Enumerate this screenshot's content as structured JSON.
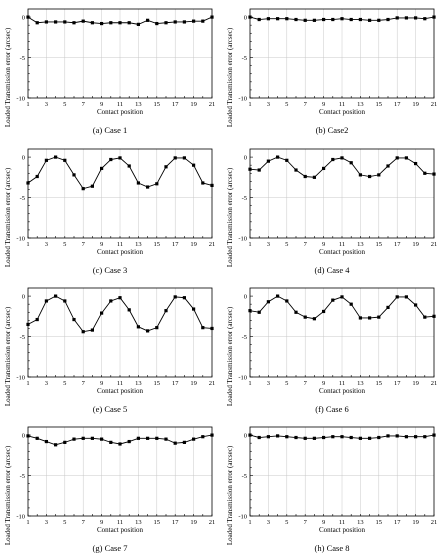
{
  "figure": {
    "panels": [
      {
        "caption": "(a) Case 1"
      },
      {
        "caption": "(b) Case2"
      },
      {
        "caption": "(c) Case 3"
      },
      {
        "caption": "(d) Case 4"
      },
      {
        "caption": "(e) Case 5"
      },
      {
        "caption": "(f) Case 6"
      },
      {
        "caption": "(g) Case 7"
      },
      {
        "caption": "(h) Case 8"
      }
    ]
  },
  "chart_data": [
    {
      "type": "line",
      "title": "",
      "xlabel": "Contact position",
      "ylabel": "Loaded Transmission error (arcsec)",
      "x": [
        1,
        2,
        3,
        4,
        5,
        6,
        7,
        8,
        9,
        10,
        11,
        12,
        13,
        14,
        15,
        16,
        17,
        18,
        19,
        20,
        21
      ],
      "xticks": [
        "1",
        "3",
        "5",
        "7",
        "9",
        "11",
        "13",
        "15",
        "17",
        "19",
        "21"
      ],
      "yticks": [
        "0",
        "-5",
        "-10"
      ],
      "xlim": [
        1,
        21
      ],
      "ylim": [
        -10,
        1
      ],
      "grid": "vertical",
      "series": [
        {
          "values": [
            0,
            -0.7,
            -0.6,
            -0.6,
            -0.6,
            -0.7,
            -0.5,
            -0.7,
            -0.8,
            -0.7,
            -0.7,
            -0.7,
            -0.9,
            -0.4,
            -0.8,
            -0.7,
            -0.6,
            -0.6,
            -0.5,
            -0.5,
            0
          ]
        }
      ]
    },
    {
      "type": "line",
      "title": "",
      "xlabel": "Contact position",
      "ylabel": "Loaded Transmission error (arcsec)",
      "x": [
        1,
        2,
        3,
        4,
        5,
        6,
        7,
        8,
        9,
        10,
        11,
        12,
        13,
        14,
        15,
        16,
        17,
        18,
        19,
        20,
        21
      ],
      "xticks": [
        "1",
        "3",
        "5",
        "7",
        "9",
        "11",
        "13",
        "15",
        "17",
        "19",
        "21"
      ],
      "yticks": [
        "0",
        "-5",
        "-10"
      ],
      "xlim": [
        1,
        21
      ],
      "ylim": [
        -10,
        1
      ],
      "grid": "vertical",
      "series": [
        {
          "values": [
            0,
            -0.3,
            -0.2,
            -0.2,
            -0.2,
            -0.3,
            -0.4,
            -0.4,
            -0.3,
            -0.3,
            -0.2,
            -0.3,
            -0.3,
            -0.4,
            -0.4,
            -0.3,
            -0.1,
            -0.1,
            -0.1,
            -0.2,
            0
          ]
        }
      ]
    },
    {
      "type": "line",
      "title": "",
      "xlabel": "Contact position",
      "ylabel": "Loaded Transmission error (arcsec)",
      "x": [
        1,
        2,
        3,
        4,
        5,
        6,
        7,
        8,
        9,
        10,
        11,
        12,
        13,
        14,
        15,
        16,
        17,
        18,
        19,
        20,
        21
      ],
      "xticks": [
        "1",
        "3",
        "5",
        "7",
        "9",
        "11",
        "13",
        "15",
        "17",
        "19",
        "21"
      ],
      "yticks": [
        "0",
        "-5",
        "-10"
      ],
      "xlim": [
        1,
        21
      ],
      "ylim": [
        -10,
        1
      ],
      "grid": "vertical",
      "series": [
        {
          "values": [
            -3.2,
            -2.4,
            -0.4,
            0,
            -0.4,
            -2.2,
            -3.9,
            -3.6,
            -1.4,
            -0.3,
            -0.1,
            -1.1,
            -3.2,
            -3.7,
            -3.3,
            -1.2,
            -0.1,
            -0.1,
            -1.0,
            -3.2,
            -3.5
          ]
        }
      ]
    },
    {
      "type": "line",
      "title": "",
      "xlabel": "Contact position",
      "ylabel": "Loaded Transmission error (arcsec)",
      "x": [
        1,
        2,
        3,
        4,
        5,
        6,
        7,
        8,
        9,
        10,
        11,
        12,
        13,
        14,
        15,
        16,
        17,
        18,
        19,
        20,
        21
      ],
      "xticks": [
        "1",
        "3",
        "5",
        "7",
        "9",
        "11",
        "13",
        "15",
        "17",
        "19",
        "21"
      ],
      "yticks": [
        "0",
        "-5",
        "-10"
      ],
      "xlim": [
        1,
        21
      ],
      "ylim": [
        -10,
        1
      ],
      "grid": "vertical",
      "series": [
        {
          "values": [
            -1.5,
            -1.6,
            -0.5,
            0,
            -0.4,
            -1.6,
            -2.4,
            -2.5,
            -1.4,
            -0.3,
            -0.1,
            -0.7,
            -2.2,
            -2.4,
            -2.2,
            -1.1,
            -0.1,
            -0.1,
            -0.8,
            -2.0,
            -2.1
          ]
        }
      ]
    },
    {
      "type": "line",
      "title": "",
      "xlabel": "Contact position",
      "ylabel": "Loaded Transmission error (arcsec)",
      "x": [
        1,
        2,
        3,
        4,
        5,
        6,
        7,
        8,
        9,
        10,
        11,
        12,
        13,
        14,
        15,
        16,
        17,
        18,
        19,
        20,
        21
      ],
      "xticks": [
        "1",
        "3",
        "5",
        "7",
        "9",
        "11",
        "13",
        "15",
        "17",
        "19",
        "21"
      ],
      "yticks": [
        "0",
        "-5",
        "-10"
      ],
      "xlim": [
        1,
        21
      ],
      "ylim": [
        -10,
        1
      ],
      "grid": "vertical",
      "series": [
        {
          "values": [
            -3.5,
            -2.9,
            -0.6,
            0,
            -0.6,
            -2.9,
            -4.4,
            -4.2,
            -2.1,
            -0.6,
            -0.2,
            -1.7,
            -3.8,
            -4.3,
            -3.9,
            -1.8,
            -0.1,
            -0.2,
            -1.6,
            -3.9,
            -4.0
          ]
        }
      ]
    },
    {
      "type": "line",
      "title": "",
      "xlabel": "Contact position",
      "ylabel": "Loaded Transmission error (arcsec)",
      "x": [
        1,
        2,
        3,
        4,
        5,
        6,
        7,
        8,
        9,
        10,
        11,
        12,
        13,
        14,
        15,
        16,
        17,
        18,
        19,
        20,
        21
      ],
      "xticks": [
        "1",
        "3",
        "5",
        "7",
        "9",
        "11",
        "13",
        "15",
        "17",
        "19",
        "21"
      ],
      "yticks": [
        "0",
        "-5",
        "-10"
      ],
      "xlim": [
        1,
        21
      ],
      "ylim": [
        -10,
        1
      ],
      "grid": "vertical",
      "series": [
        {
          "values": [
            -1.8,
            -2.0,
            -0.7,
            0,
            -0.6,
            -2.0,
            -2.6,
            -2.8,
            -1.9,
            -0.5,
            -0.1,
            -1.0,
            -2.7,
            -2.7,
            -2.6,
            -1.4,
            -0.1,
            -0.1,
            -1.1,
            -2.6,
            -2.5
          ]
        }
      ]
    },
    {
      "type": "line",
      "title": "",
      "xlabel": "Contact position",
      "ylabel": "Loaded Transmission error (arcsec)",
      "x": [
        1,
        2,
        3,
        4,
        5,
        6,
        7,
        8,
        9,
        10,
        11,
        12,
        13,
        14,
        15,
        16,
        17,
        18,
        19,
        20,
        21
      ],
      "xticks": [
        "1",
        "3",
        "5",
        "7",
        "9",
        "11",
        "13",
        "15",
        "17",
        "19",
        "21"
      ],
      "yticks": [
        "0",
        "-5",
        "-10"
      ],
      "xlim": [
        1,
        21
      ],
      "ylim": [
        -10,
        1
      ],
      "grid": "vertical",
      "series": [
        {
          "values": [
            -0.1,
            -0.4,
            -0.8,
            -1.2,
            -0.9,
            -0.5,
            -0.4,
            -0.4,
            -0.5,
            -0.9,
            -1.1,
            -0.8,
            -0.4,
            -0.4,
            -0.4,
            -0.5,
            -1.0,
            -0.9,
            -0.5,
            -0.2,
            0
          ]
        }
      ]
    },
    {
      "type": "line",
      "title": "",
      "xlabel": "Contact position",
      "ylabel": "Loaded Transmission error (arcsec)",
      "x": [
        1,
        2,
        3,
        4,
        5,
        6,
        7,
        8,
        9,
        10,
        11,
        12,
        13,
        14,
        15,
        16,
        17,
        18,
        19,
        20,
        21
      ],
      "xticks": [
        "1",
        "3",
        "5",
        "7",
        "9",
        "11",
        "13",
        "15",
        "17",
        "19",
        "21"
      ],
      "yticks": [
        "0",
        "-5",
        "-10"
      ],
      "xlim": [
        1,
        21
      ],
      "ylim": [
        -10,
        1
      ],
      "grid": "vertical",
      "series": [
        {
          "values": [
            0,
            -0.3,
            -0.2,
            -0.1,
            -0.2,
            -0.3,
            -0.4,
            -0.4,
            -0.3,
            -0.2,
            -0.2,
            -0.3,
            -0.4,
            -0.4,
            -0.3,
            -0.1,
            -0.1,
            -0.2,
            -0.2,
            -0.2,
            0
          ]
        }
      ]
    }
  ]
}
